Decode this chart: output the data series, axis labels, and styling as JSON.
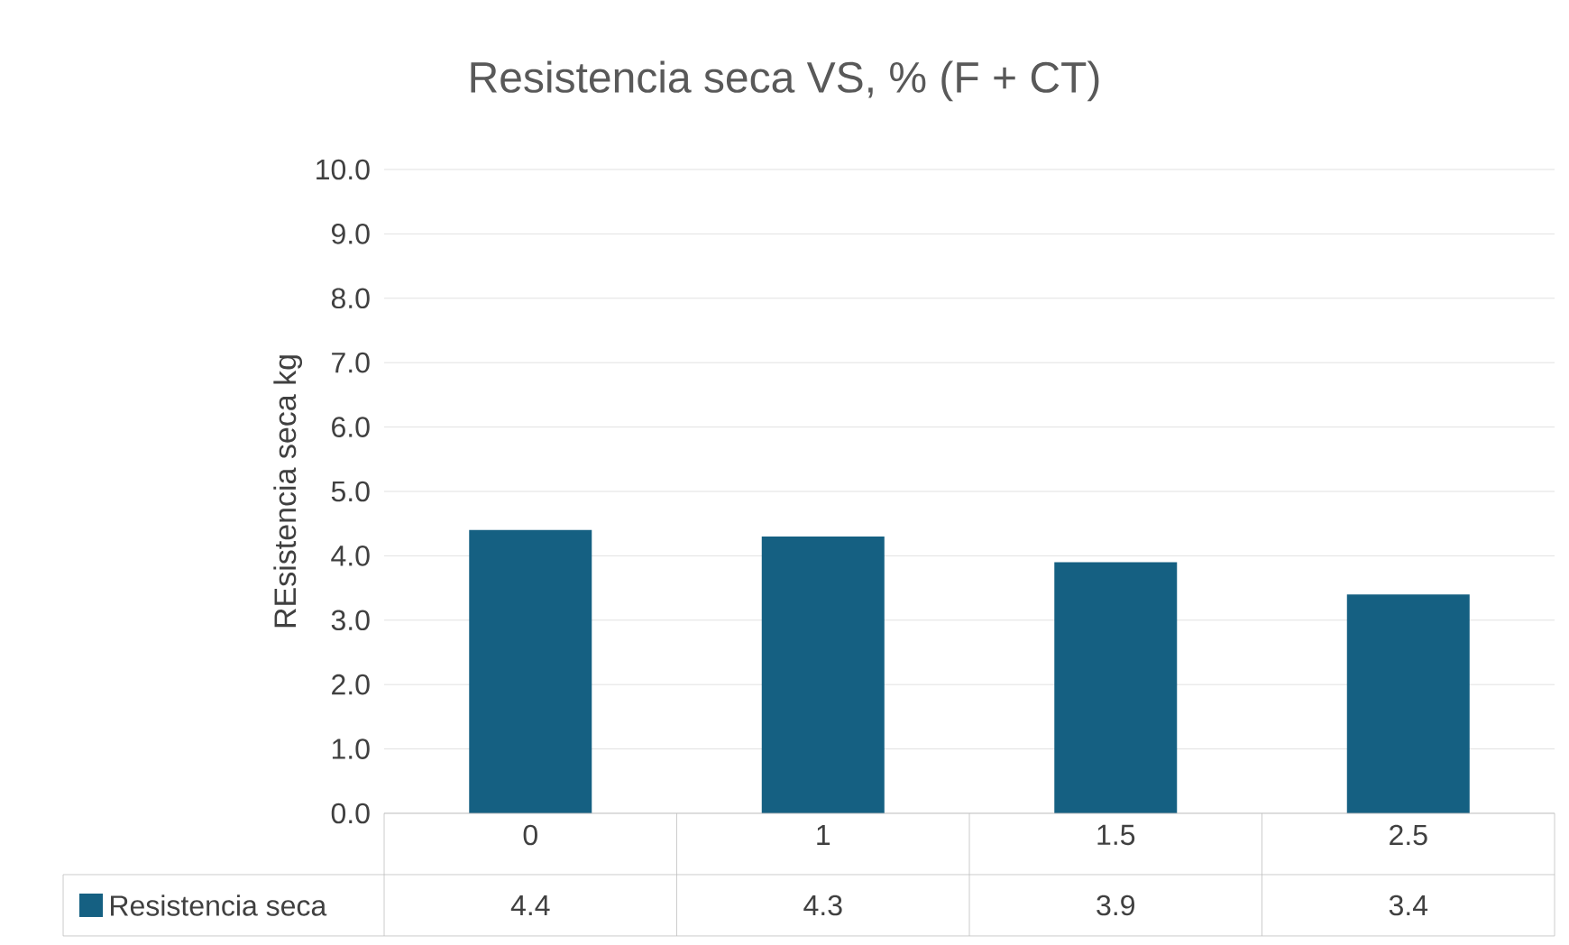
{
  "chart_data": {
    "type": "bar",
    "title": "Resistencia seca VS, %  (F + CT)",
    "ylabel": "REsistencia seca kg",
    "categories": [
      "0",
      "1",
      "1.5",
      "2.5"
    ],
    "series": [
      {
        "name": "Resistencia seca",
        "color": "#156082",
        "values": [
          4.4,
          4.3,
          3.9,
          3.4
        ]
      }
    ],
    "ylim": [
      0,
      10
    ],
    "yticks": [
      {
        "value": 0,
        "label": "0.0"
      },
      {
        "value": 1,
        "label": "1.0"
      },
      {
        "value": 2,
        "label": "2.0"
      },
      {
        "value": 3,
        "label": "3.0"
      },
      {
        "value": 4,
        "label": "4.0"
      },
      {
        "value": 5,
        "label": "5.0"
      },
      {
        "value": 6,
        "label": "6.0"
      },
      {
        "value": 7,
        "label": "7.0"
      },
      {
        "value": 8,
        "label": "8.0"
      },
      {
        "value": 9,
        "label": "9.0"
      },
      {
        "value": 10,
        "label": "10.0"
      }
    ],
    "grid": "y",
    "legend": "bottom",
    "data_labels": true
  }
}
